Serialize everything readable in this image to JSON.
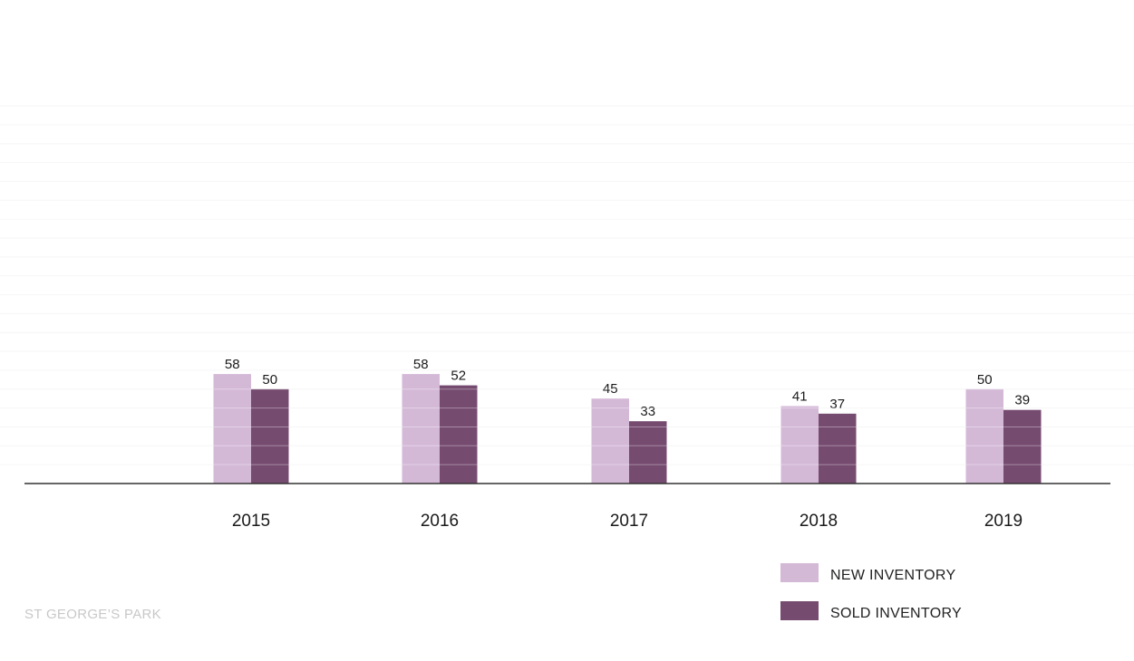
{
  "chart_data": {
    "type": "bar",
    "categories": [
      "2015",
      "2016",
      "2017",
      "2018",
      "2019"
    ],
    "series": [
      {
        "name": "NEW INVENTORY",
        "color": "#d4b9d7",
        "values": [
          58,
          58,
          45,
          41,
          50
        ]
      },
      {
        "name": "SOLD INVENTORY",
        "color": "#764b70",
        "values": [
          50,
          52,
          33,
          37,
          39
        ]
      }
    ],
    "ylim": [
      0,
      200
    ],
    "grid": true,
    "legend_position": "bottom-right"
  },
  "footer": {
    "watermark": "ST GEORGE’S PARK"
  }
}
